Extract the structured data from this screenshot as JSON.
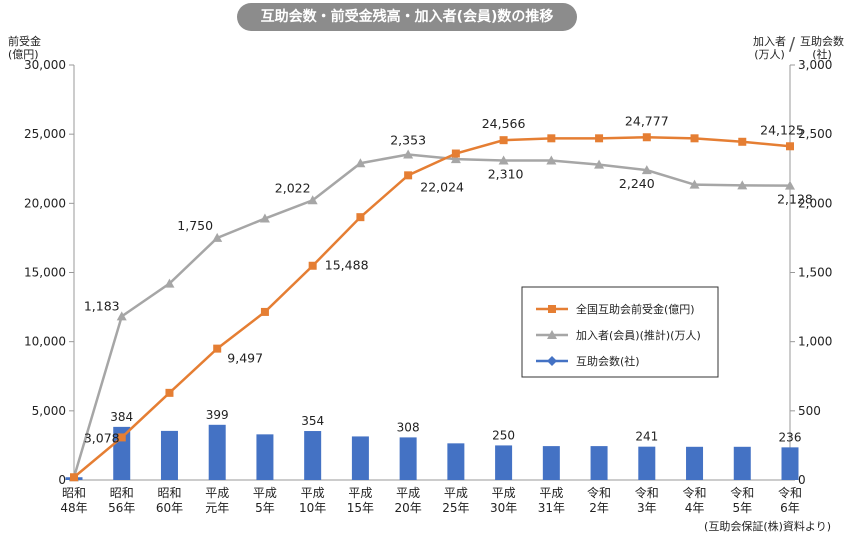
{
  "title": "互助会数・前受金残高・加入者(会員)数の推移",
  "left_axis": {
    "title_line1": "前受金",
    "title_line2": "(億円)"
  },
  "right_axis": {
    "title_a_line1": "加入者",
    "title_a_line2": "(万人)",
    "separator": "/",
    "title_b_line1": "互助会数",
    "title_b_line2": "(社)"
  },
  "source_note": "(互助会保証(株)資料より)",
  "colors": {
    "advance": "#e57e33",
    "members": "#a6a6a6",
    "companies": "#4472c4",
    "title_bg": "#8c8c8c"
  },
  "chart_data": {
    "type": "bar+line",
    "title": "互助会数・前受金残高・加入者(会員)数の推移",
    "categories": [
      [
        "昭和",
        "48年"
      ],
      [
        "昭和",
        "56年"
      ],
      [
        "昭和",
        "60年"
      ],
      [
        "平成",
        "元年"
      ],
      [
        "平成",
        "5年"
      ],
      [
        "平成",
        "10年"
      ],
      [
        "平成",
        "15年"
      ],
      [
        "平成",
        "20年"
      ],
      [
        "平成",
        "25年"
      ],
      [
        "平成",
        "30年"
      ],
      [
        "平成",
        "31年"
      ],
      [
        "令和",
        "2年"
      ],
      [
        "令和",
        "3年"
      ],
      [
        "令和",
        "4年"
      ],
      [
        "令和",
        "5年"
      ],
      [
        "令和",
        "6年"
      ]
    ],
    "y_left": {
      "label": "前受金(億円)",
      "ylim": [
        0,
        30000
      ],
      "ticks": [
        "0",
        "5,000",
        "10,000",
        "15,000",
        "20,000",
        "25,000",
        "30,000"
      ]
    },
    "y_right": {
      "label": "加入者(万人)/互助会数(社)",
      "ylim": [
        0,
        3000
      ],
      "ticks": [
        "0",
        "500",
        "1,000",
        "1,500",
        "2,000",
        "2,500",
        "3,000"
      ]
    },
    "grid": false,
    "legend_position": "center-right",
    "series": [
      {
        "name": "全国互助会前受金(億円)",
        "type": "line",
        "axis": "left",
        "marker": "square",
        "values": [
          200,
          3078,
          6300,
          9497,
          12150,
          15488,
          19000,
          22024,
          23600,
          24566,
          24700,
          24700,
          24777,
          24700,
          24450,
          24125
        ],
        "labels": [
          "",
          "3,078",
          "",
          "9,497",
          "",
          "15,488",
          "",
          "22,024",
          "",
          "24,566",
          "",
          "",
          "24,777",
          "",
          "",
          "24,125"
        ]
      },
      {
        "name": "加入者(会員)(推計)(万人)",
        "type": "line",
        "axis": "right",
        "marker": "triangle",
        "values": [
          20,
          1183,
          1420,
          1750,
          1890,
          2022,
          2290,
          2353,
          2320,
          2310,
          2310,
          2280,
          2240,
          2135,
          2130,
          2128
        ],
        "labels": [
          "",
          "1,183",
          "",
          "1,750",
          "",
          "2,022",
          "",
          "2,353",
          "",
          "2,310",
          "",
          "",
          "2,240",
          "",
          "",
          "2,128"
        ]
      },
      {
        "name": "互助会数(社)",
        "type": "bar",
        "axis": "right",
        "marker": "diamond",
        "values": [
          20,
          384,
          355,
          399,
          330,
          354,
          315,
          308,
          265,
          250,
          245,
          245,
          241,
          240,
          240,
          236
        ],
        "labels": [
          "",
          "384",
          "",
          "399",
          "",
          "354",
          "",
          "308",
          "",
          "250",
          "",
          "",
          "241",
          "",
          "",
          "236"
        ]
      }
    ]
  }
}
